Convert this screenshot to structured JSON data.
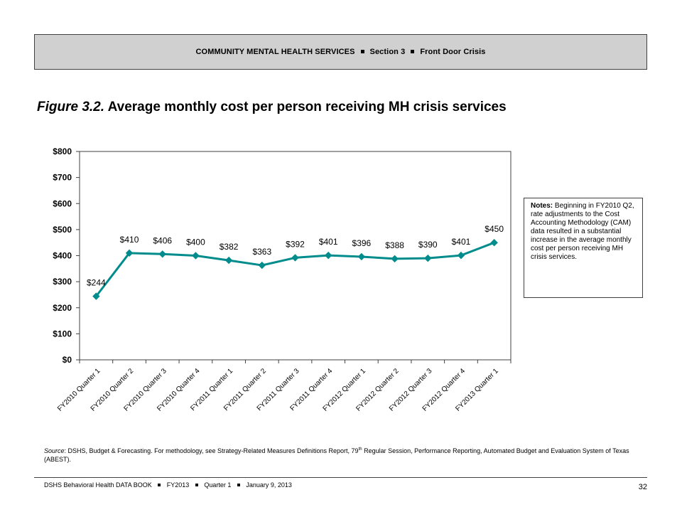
{
  "header": {
    "part1": "COMMUNITY MENTAL HEALTH SERVICES",
    "part2": "Section 3",
    "part3": "Front Door Crisis"
  },
  "figure": {
    "number": "Figure 3.2.",
    "title": "Average monthly cost per person receiving MH crisis services"
  },
  "notes": {
    "label": "Notes:",
    "text": " Beginning in FY2010 Q2, rate adjustments to the Cost Accounting Methodology (CAM) data resulted in a substantial increase in the average monthly cost per person receiving MH crisis services."
  },
  "source": {
    "label": "Source",
    "text_a": ": DSHS, Budget & Forecasting. For methodology, see Strategy-Related Measures Definitions Report, 79",
    "sup": "th",
    "text_b": " Regular Session, Performance Reporting, Automated Budget and Evaluation System of Texas (ABEST)."
  },
  "footer": {
    "book": "DSHS Behavioral Health DATA BOOK",
    "fy": "FY2013",
    "quarter": "Quarter 1",
    "date": "January  9, 2013",
    "page": "32"
  },
  "colors": {
    "series": "#008c8c",
    "header_bg": "#d0d0d0"
  },
  "chart_data": {
    "type": "line",
    "categories": [
      "FY2010 Quarter 1",
      "FY2010 Quarter 2",
      "FY2010 Quarter 3",
      "FY2010 Quarter 4",
      "FY2011 Quarter 1",
      "FY2011 Quarter 2",
      "FY2011 Quarter 3",
      "FY2011 Quarter 4",
      "FY2012 Quarter 1",
      "FY2012 Quarter 2",
      "FY2012 Quarter 3",
      "FY2012 Quarter 4",
      "FY2013 Quarter 1"
    ],
    "values": [
      244,
      410,
      406,
      400,
      382,
      363,
      392,
      401,
      396,
      388,
      390,
      401,
      450
    ],
    "data_labels": [
      "$244",
      "$410",
      "$406",
      "$400",
      "$382",
      "$363",
      "$392",
      "$401",
      "$396",
      "$388",
      "$390",
      "$401",
      "$450"
    ],
    "yticks": [
      "$0",
      "$100",
      "$200",
      "$300",
      "$400",
      "$500",
      "$600",
      "$700",
      "$800"
    ],
    "ylim": [
      0,
      800
    ],
    "title": "",
    "xlabel": "",
    "ylabel": "",
    "grid": false,
    "legend": false
  }
}
